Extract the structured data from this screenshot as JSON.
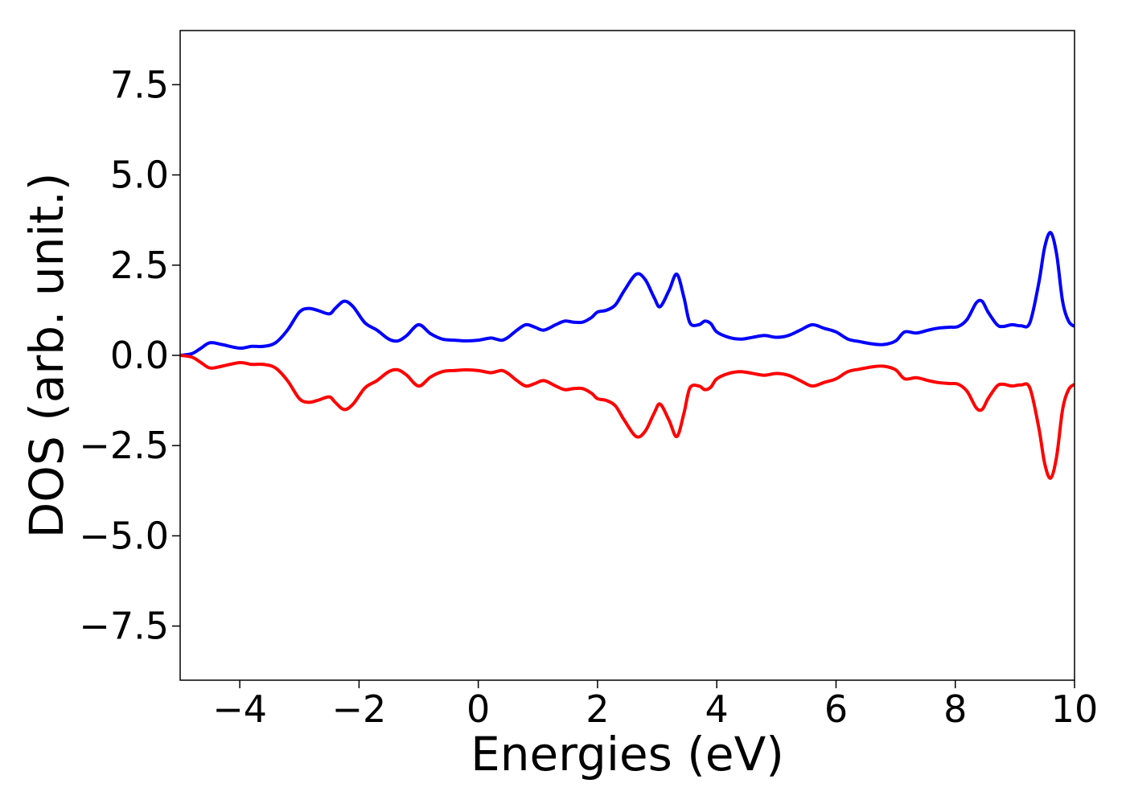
{
  "chart_data": {
    "type": "line",
    "title": "",
    "xlabel": "Energies (eV)",
    "ylabel": "DOS (arb. unit.)",
    "xlim": [
      -5,
      10
    ],
    "ylim": [
      -9,
      9
    ],
    "xticks": [
      -4,
      -2,
      0,
      2,
      4,
      6,
      8,
      10
    ],
    "xtick_labels": [
      "−4",
      "−2",
      "0",
      "2",
      "4",
      "6",
      "8",
      "10"
    ],
    "yticks": [
      7.5,
      5.0,
      2.5,
      0.0,
      -2.5,
      -5.0,
      -7.5
    ],
    "ytick_labels": [
      "7.5",
      "5.0",
      "2.5",
      "0.0",
      "−2.5",
      "−5.0",
      "−7.5"
    ],
    "grid": false,
    "legend": null,
    "series": [
      {
        "color": "#0000ff",
        "x": [
          -5.0,
          -4.8,
          -4.65,
          -4.5,
          -4.3,
          -4.0,
          -3.8,
          -3.6,
          -3.4,
          -3.2,
          -3.0,
          -2.85,
          -2.7,
          -2.5,
          -2.4,
          -2.25,
          -2.1,
          -1.9,
          -1.7,
          -1.5,
          -1.35,
          -1.2,
          -1.0,
          -0.8,
          -0.6,
          -0.4,
          -0.2,
          0.0,
          0.2,
          0.3,
          0.4,
          0.5,
          0.65,
          0.8,
          0.95,
          1.1,
          1.3,
          1.45,
          1.6,
          1.75,
          1.9,
          2.0,
          2.15,
          2.3,
          2.45,
          2.65,
          2.8,
          2.95,
          3.05,
          3.2,
          3.33,
          3.45,
          3.55,
          3.7,
          3.8,
          3.9,
          4.0,
          4.2,
          4.4,
          4.6,
          4.8,
          5.0,
          5.2,
          5.4,
          5.6,
          5.8,
          6.0,
          6.2,
          6.4,
          6.6,
          6.8,
          7.0,
          7.15,
          7.35,
          7.55,
          7.7,
          7.9,
          8.05,
          8.2,
          8.35,
          8.45,
          8.55,
          8.7,
          8.8,
          8.95,
          9.1,
          9.25,
          9.4,
          9.5,
          9.6,
          9.7,
          9.8,
          9.9,
          10.0
        ],
        "y": [
          0.0,
          0.05,
          0.2,
          0.35,
          0.3,
          0.2,
          0.25,
          0.25,
          0.35,
          0.7,
          1.2,
          1.3,
          1.25,
          1.15,
          1.3,
          1.5,
          1.35,
          0.9,
          0.7,
          0.45,
          0.4,
          0.55,
          0.85,
          0.6,
          0.45,
          0.42,
          0.4,
          0.42,
          0.48,
          0.45,
          0.42,
          0.5,
          0.7,
          0.85,
          0.78,
          0.7,
          0.85,
          0.95,
          0.92,
          0.92,
          1.05,
          1.2,
          1.25,
          1.4,
          1.8,
          2.25,
          2.1,
          1.6,
          1.35,
          1.8,
          2.25,
          1.6,
          0.9,
          0.85,
          0.95,
          0.88,
          0.65,
          0.5,
          0.45,
          0.5,
          0.55,
          0.5,
          0.55,
          0.7,
          0.85,
          0.75,
          0.65,
          0.45,
          0.38,
          0.32,
          0.3,
          0.4,
          0.65,
          0.62,
          0.7,
          0.75,
          0.78,
          0.8,
          1.0,
          1.45,
          1.5,
          1.2,
          0.85,
          0.8,
          0.85,
          0.82,
          0.9,
          2.0,
          3.0,
          3.4,
          2.8,
          1.5,
          0.95,
          0.8
        ]
      },
      {
        "color": "#ff0000",
        "x": [
          -5.0,
          -4.8,
          -4.65,
          -4.5,
          -4.3,
          -4.0,
          -3.8,
          -3.6,
          -3.4,
          -3.2,
          -3.0,
          -2.85,
          -2.7,
          -2.5,
          -2.4,
          -2.25,
          -2.1,
          -1.9,
          -1.7,
          -1.5,
          -1.35,
          -1.2,
          -1.0,
          -0.8,
          -0.6,
          -0.4,
          -0.2,
          0.0,
          0.2,
          0.3,
          0.4,
          0.5,
          0.65,
          0.8,
          0.95,
          1.1,
          1.3,
          1.45,
          1.6,
          1.75,
          1.9,
          2.0,
          2.15,
          2.3,
          2.45,
          2.65,
          2.8,
          2.95,
          3.05,
          3.2,
          3.33,
          3.45,
          3.55,
          3.7,
          3.8,
          3.9,
          4.0,
          4.2,
          4.4,
          4.6,
          4.8,
          5.0,
          5.2,
          5.4,
          5.6,
          5.8,
          6.0,
          6.2,
          6.4,
          6.6,
          6.8,
          7.0,
          7.15,
          7.35,
          7.55,
          7.7,
          7.9,
          8.05,
          8.2,
          8.35,
          8.45,
          8.55,
          8.7,
          8.8,
          8.95,
          9.1,
          9.25,
          9.4,
          9.5,
          9.6,
          9.7,
          9.8,
          9.9,
          10.0
        ],
        "y": [
          0.0,
          -0.05,
          -0.2,
          -0.35,
          -0.3,
          -0.2,
          -0.25,
          -0.25,
          -0.35,
          -0.7,
          -1.2,
          -1.3,
          -1.25,
          -1.15,
          -1.3,
          -1.5,
          -1.35,
          -0.9,
          -0.7,
          -0.45,
          -0.4,
          -0.55,
          -0.85,
          -0.6,
          -0.45,
          -0.42,
          -0.4,
          -0.42,
          -0.48,
          -0.45,
          -0.42,
          -0.5,
          -0.7,
          -0.85,
          -0.78,
          -0.7,
          -0.85,
          -0.95,
          -0.92,
          -0.92,
          -1.05,
          -1.2,
          -1.25,
          -1.4,
          -1.8,
          -2.25,
          -2.1,
          -1.6,
          -1.35,
          -1.8,
          -2.25,
          -1.6,
          -0.9,
          -0.85,
          -0.95,
          -0.88,
          -0.65,
          -0.5,
          -0.45,
          -0.5,
          -0.55,
          -0.5,
          -0.55,
          -0.7,
          -0.85,
          -0.75,
          -0.65,
          -0.45,
          -0.38,
          -0.32,
          -0.3,
          -0.4,
          -0.65,
          -0.62,
          -0.7,
          -0.75,
          -0.78,
          -0.8,
          -1.0,
          -1.45,
          -1.5,
          -1.2,
          -0.85,
          -0.8,
          -0.85,
          -0.82,
          -0.9,
          -2.0,
          -3.0,
          -3.4,
          -2.8,
          -1.5,
          -0.95,
          -0.8
        ]
      }
    ]
  }
}
